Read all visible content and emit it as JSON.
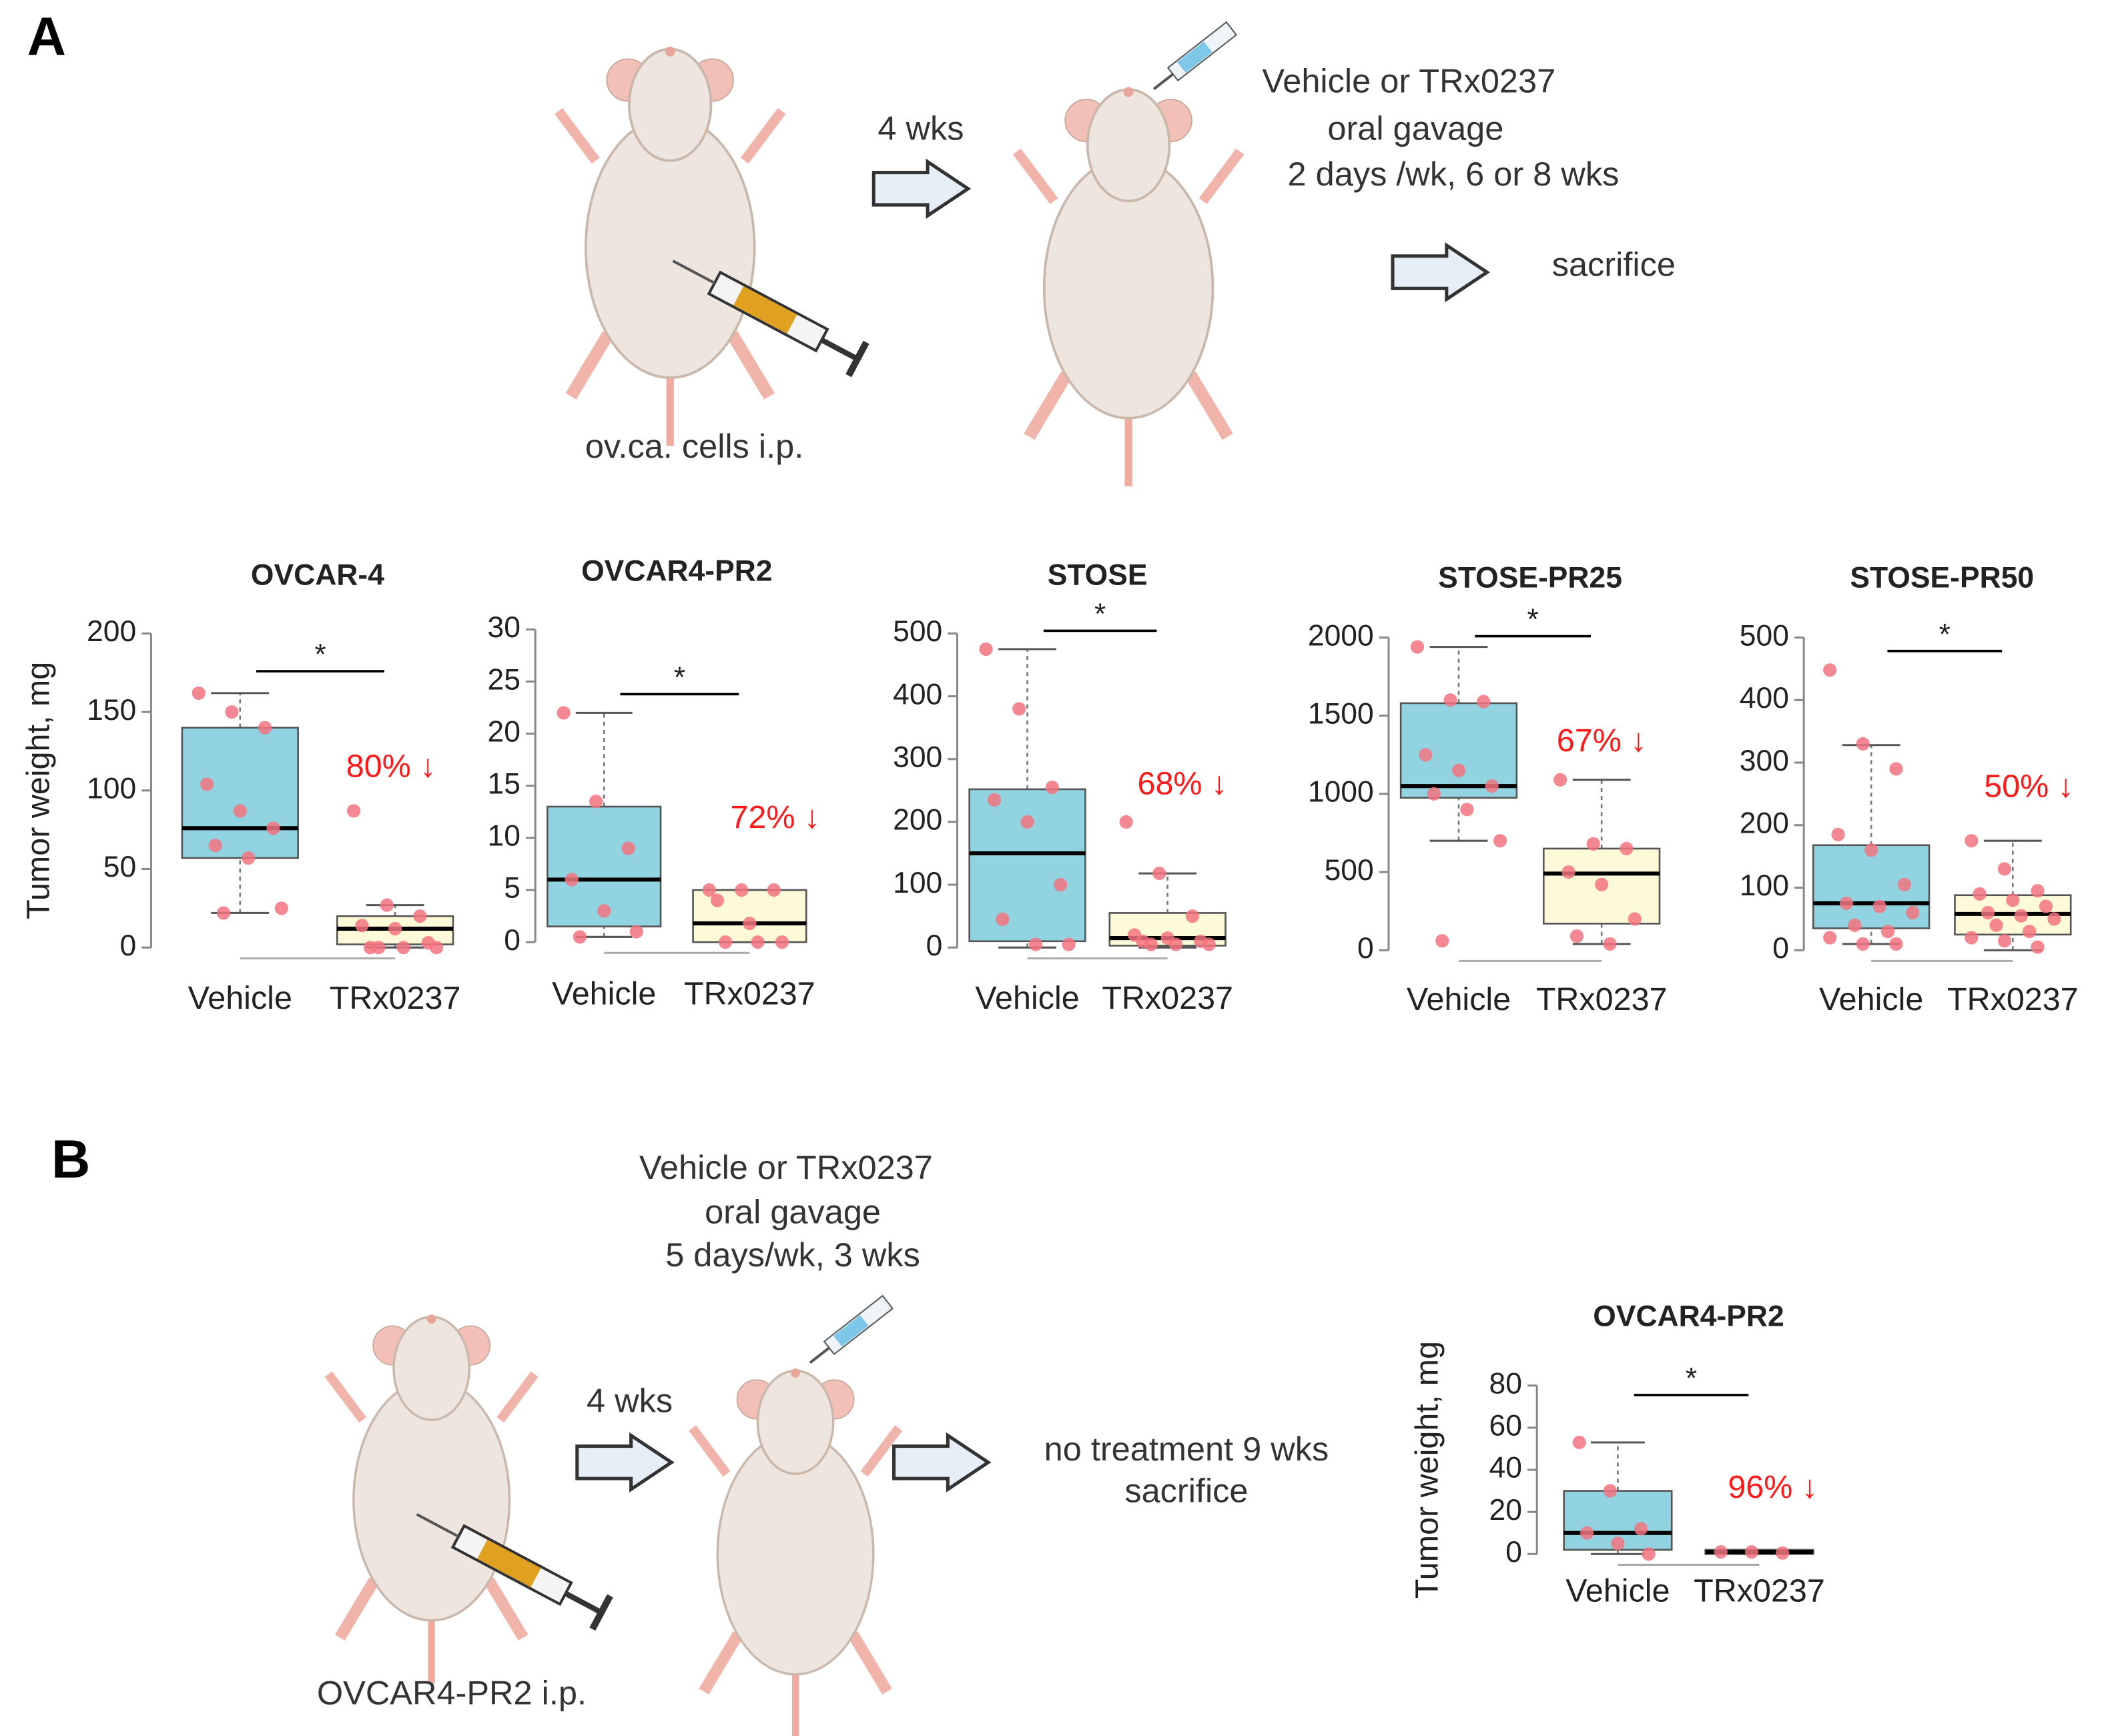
{
  "panel_a": {
    "label": "A",
    "arrow_label": "4 wks",
    "treatment": [
      "Vehicle or TRx0237",
      "oral gavage",
      "2 days /wk, 6 or 8 wks"
    ],
    "end": "sacrifice",
    "injection": "ov.ca. cells  i.p."
  },
  "panel_b": {
    "label": "B",
    "arrow_label": "4 wks",
    "treatment": [
      "Vehicle or TRx0237",
      "oral gavage",
      "5 days/wk, 3 wks"
    ],
    "end": [
      "no treatment 9 wks",
      "sacrifice"
    ],
    "injection": "OVCAR4-PR2 i.p."
  },
  "chart_data": [
    {
      "type": "box",
      "title": "OVCAR-4",
      "ylabel": "Tumor  weight,  mg",
      "categories": [
        "Vehicle",
        "TRx0237"
      ],
      "ylim": [
        0,
        200
      ],
      "yticks": [
        0,
        50,
        100,
        150,
        200
      ],
      "significance": "*",
      "reduction_label": "80% ↓",
      "point_color": "#f2737f",
      "boxes": [
        {
          "color": "#92d3e2",
          "whisker_low": 22,
          "q1": 57,
          "median": 76,
          "q3": 140,
          "whisker_high": 162,
          "points": [
            162,
            150,
            140,
            104,
            87,
            76,
            65,
            57,
            25,
            22
          ]
        },
        {
          "color": "#fdfad9",
          "whisker_low": 0,
          "q1": 2,
          "median": 12,
          "q3": 20,
          "whisker_high": 27,
          "points": [
            87,
            27,
            20,
            14,
            12,
            3,
            0,
            0,
            0,
            0
          ]
        }
      ]
    },
    {
      "type": "box",
      "title": "OVCAR4-PR2",
      "categories": [
        "Vehicle",
        "TRx0237"
      ],
      "ylim": [
        0,
        30
      ],
      "yticks": [
        0,
        5,
        10,
        15,
        20,
        25,
        30
      ],
      "significance": "*",
      "reduction_label": "72% ↓",
      "point_color": "#f2737f",
      "boxes": [
        {
          "color": "#92d3e2",
          "whisker_low": 0.5,
          "q1": 1.5,
          "median": 6,
          "q3": 13,
          "whisker_high": 22,
          "points": [
            22,
            13.5,
            9,
            6,
            3,
            1,
            0.5
          ]
        },
        {
          "color": "#fdfad9",
          "whisker_low": 0,
          "q1": 0,
          "median": 1.8,
          "q3": 5,
          "whisker_high": 5,
          "points": [
            5,
            5,
            5,
            4,
            1.8,
            0,
            0,
            0
          ]
        }
      ]
    },
    {
      "type": "box",
      "title": "STOSE",
      "categories": [
        "Vehicle",
        "TRx0237"
      ],
      "ylim": [
        0,
        500
      ],
      "yticks": [
        0,
        100,
        200,
        300,
        400,
        500
      ],
      "significance": "*",
      "reduction_label": "68% ↓",
      "point_color": "#f2737f",
      "boxes": [
        {
          "color": "#92d3e2",
          "whisker_low": 0,
          "q1": 10,
          "median": 150,
          "q3": 252,
          "whisker_high": 475,
          "points": [
            475,
            380,
            255,
            235,
            200,
            100,
            45,
            5,
            5
          ]
        },
        {
          "color": "#fdfad9",
          "whisker_low": 0,
          "q1": 3,
          "median": 15,
          "q3": 55,
          "whisker_high": 118,
          "points": [
            200,
            118,
            50,
            20,
            15,
            10,
            10,
            5,
            5,
            5
          ]
        }
      ]
    },
    {
      "type": "box",
      "title": "STOSE-PR25",
      "categories": [
        "Vehicle",
        "TRx0237"
      ],
      "ylim": [
        0,
        2000
      ],
      "yticks": [
        0,
        500,
        1000,
        1500,
        2000
      ],
      "significance": "*",
      "reduction_label": "67% ↓",
      "point_color": "#f2737f",
      "boxes": [
        {
          "color": "#92d3e2",
          "whisker_low": 700,
          "q1": 975,
          "median": 1050,
          "q3": 1580,
          "whisker_high": 1940,
          "points": [
            1940,
            1600,
            1590,
            1250,
            1150,
            1050,
            1000,
            900,
            700,
            60
          ]
        },
        {
          "color": "#fdfad9",
          "whisker_low": 40,
          "q1": 170,
          "median": 490,
          "q3": 650,
          "whisker_high": 1090,
          "points": [
            1090,
            680,
            650,
            500,
            420,
            200,
            90,
            40
          ]
        }
      ]
    },
    {
      "type": "box",
      "title": "STOSE-PR50",
      "categories": [
        "Vehicle",
        "TRx0237"
      ],
      "ylim": [
        0,
        500
      ],
      "yticks": [
        0,
        100,
        200,
        300,
        400,
        500
      ],
      "significance": "*",
      "reduction_label": "50% ↓",
      "point_color": "#f2737f",
      "boxes": [
        {
          "color": "#92d3e2",
          "whisker_low": 10,
          "q1": 35,
          "median": 75,
          "q3": 168,
          "whisker_high": 328,
          "points": [
            448,
            330,
            290,
            185,
            160,
            105,
            75,
            70,
            60,
            40,
            30,
            20,
            10,
            10
          ]
        },
        {
          "color": "#fdfad9",
          "whisker_low": 0,
          "q1": 25,
          "median": 58,
          "q3": 88,
          "whisker_high": 175,
          "points": [
            175,
            130,
            95,
            90,
            80,
            70,
            60,
            55,
            50,
            40,
            30,
            20,
            15,
            5
          ]
        }
      ]
    },
    {
      "type": "box",
      "title": "OVCAR4-PR2",
      "ylabel": "Tumor  weight,  mg",
      "categories": [
        "Vehicle",
        "TRx0237"
      ],
      "ylim": [
        0,
        80
      ],
      "yticks": [
        0,
        20,
        40,
        60,
        80
      ],
      "significance": "*",
      "reduction_label": "96% ↓",
      "point_color": "#f2737f",
      "boxes": [
        {
          "color": "#92d3e2",
          "whisker_low": 0,
          "q1": 2,
          "median": 10,
          "q3": 30,
          "whisker_high": 53,
          "points": [
            53,
            30,
            12,
            10,
            5,
            0
          ]
        },
        {
          "color": "#fdfad9",
          "whisker_low": 0,
          "q1": 0,
          "median": 1,
          "q3": 2,
          "whisker_high": 2,
          "points": [
            1,
            1,
            0.5
          ]
        }
      ]
    }
  ]
}
